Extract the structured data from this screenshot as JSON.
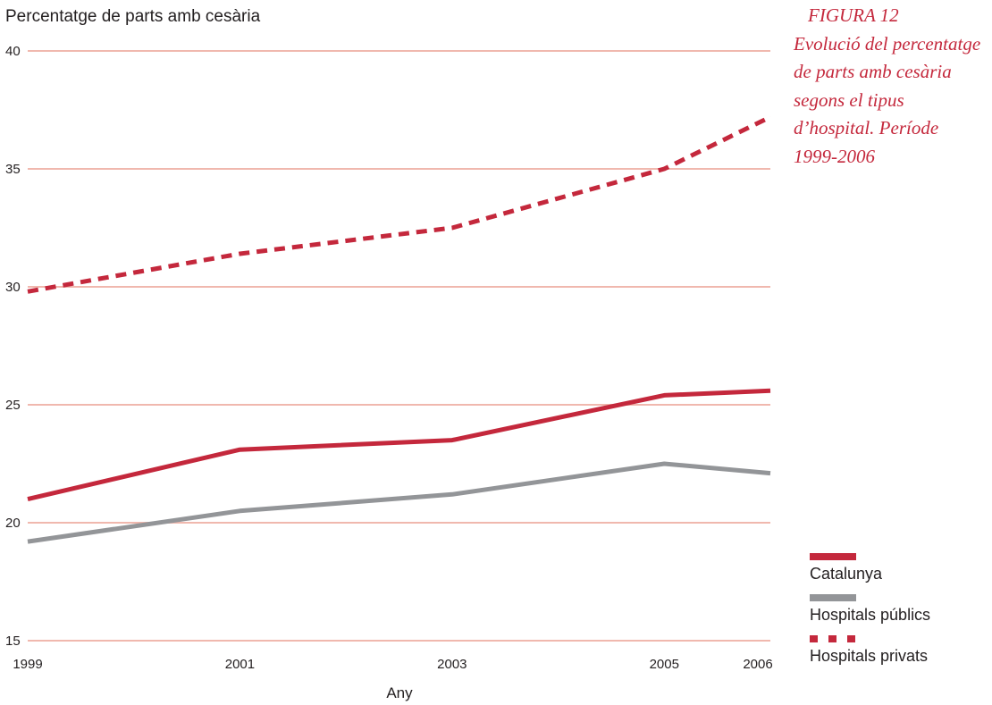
{
  "caption": {
    "figure_number": "FIGURA 12",
    "text": "Evolució del percentatge de parts amb cesària segons el tipus d’hospital. Període 1999-2006"
  },
  "chart_data": {
    "type": "line",
    "ylabel": "Percentatge de parts amb cesària",
    "xlabel": "Any",
    "x": [
      1999,
      2001,
      2003,
      2005,
      2006
    ],
    "x_tick_labels": [
      "1999",
      "2001",
      "2003",
      "2005",
      "2006"
    ],
    "yticks": [
      15,
      20,
      25,
      30,
      35,
      40
    ],
    "ylim": [
      15,
      40
    ],
    "grid": "horizontal",
    "legend_position": "bottom-right",
    "series": [
      {
        "name": "Catalunya",
        "values": [
          21.0,
          23.1,
          23.5,
          25.4,
          25.6
        ],
        "color": "#c4283c",
        "style": "solid"
      },
      {
        "name": "Hospitals públics",
        "values": [
          19.2,
          20.5,
          21.2,
          22.5,
          22.1
        ],
        "color": "#939598",
        "style": "solid"
      },
      {
        "name": "Hospitals privats",
        "values": [
          29.8,
          31.4,
          32.5,
          35.0,
          37.2
        ],
        "color": "#c4283c",
        "style": "dashed"
      }
    ]
  },
  "colors": {
    "grid": "#f0b8ae",
    "accent": "#c4283c",
    "gray": "#939598"
  }
}
